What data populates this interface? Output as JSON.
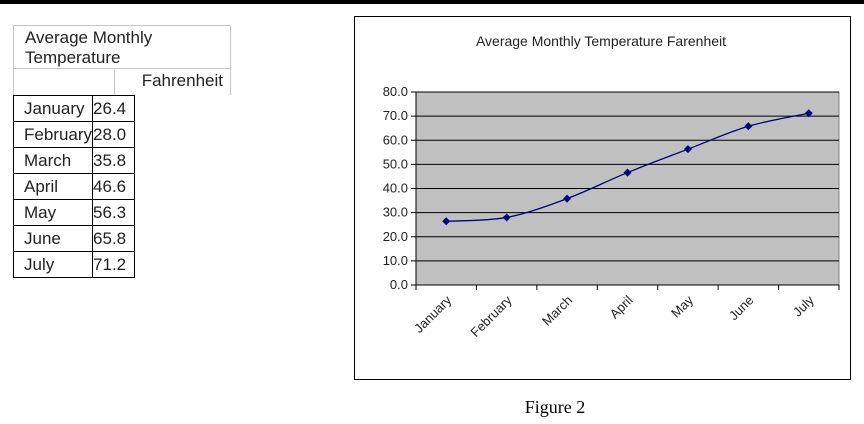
{
  "table": {
    "title_line1": "Average Monthly",
    "title_line2": "Temperature",
    "unit_header": "Fahrenheit",
    "rows": [
      {
        "month": "January",
        "value": "26.4"
      },
      {
        "month": "February",
        "value": "28.0"
      },
      {
        "month": "March",
        "value": "35.8"
      },
      {
        "month": "April",
        "value": "46.6"
      },
      {
        "month": "May",
        "value": "56.3"
      },
      {
        "month": "June",
        "value": "65.8"
      },
      {
        "month": "July",
        "value": "71.2"
      }
    ]
  },
  "chart_data": {
    "type": "line",
    "title": "Average Monthly Temperature Farenheit",
    "categories": [
      "January",
      "February",
      "March",
      "April",
      "May",
      "June",
      "July"
    ],
    "series": [
      {
        "values": [
          26.4,
          28.0,
          35.8,
          46.6,
          56.3,
          65.8,
          71.2
        ]
      }
    ],
    "ylim": [
      0,
      80
    ],
    "yticks": [
      "80.0",
      "70.0",
      "60.0",
      "50.0",
      "40.0",
      "30.0",
      "20.0",
      "10.0",
      "0.0"
    ],
    "grid": true,
    "plot_background": "#c0c0c0",
    "line_color": "#000080",
    "marker": "diamond"
  },
  "caption": "Figure 2"
}
